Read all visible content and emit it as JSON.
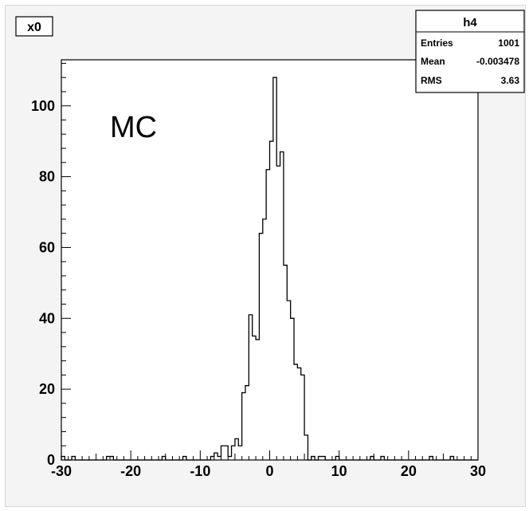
{
  "chart_data": {
    "type": "bar",
    "histogram_name": "x0",
    "annotation": "MC",
    "stats": {
      "name": "h4",
      "rows": [
        {
          "label": "Entries",
          "value": "1001"
        },
        {
          "label": "Mean",
          "value": "-0.003478"
        },
        {
          "label": "RMS",
          "value": "3.63"
        }
      ]
    },
    "xlim": [
      -30,
      30
    ],
    "ylim": [
      0,
      113
    ],
    "x_ticks": [
      -30,
      -20,
      -10,
      0,
      10,
      20,
      30
    ],
    "y_ticks": [
      0,
      20,
      40,
      60,
      80,
      100
    ],
    "bin_width": 0.5,
    "bins": [
      {
        "x": -30.0,
        "y": 1
      },
      {
        "x": -29.5,
        "y": 0
      },
      {
        "x": -29.0,
        "y": 0
      },
      {
        "x": -28.5,
        "y": 1
      },
      {
        "x": -28.0,
        "y": 0
      },
      {
        "x": -27.5,
        "y": 0
      },
      {
        "x": -27.0,
        "y": 0
      },
      {
        "x": -26.5,
        "y": 0
      },
      {
        "x": -26.0,
        "y": 0
      },
      {
        "x": -25.5,
        "y": 0
      },
      {
        "x": -25.0,
        "y": 0
      },
      {
        "x": -24.5,
        "y": 0
      },
      {
        "x": -24.0,
        "y": 0
      },
      {
        "x": -23.5,
        "y": 1
      },
      {
        "x": -23.0,
        "y": 1
      },
      {
        "x": -22.5,
        "y": 0
      },
      {
        "x": -22.0,
        "y": 0
      },
      {
        "x": -21.5,
        "y": 0
      },
      {
        "x": -21.0,
        "y": 0
      },
      {
        "x": -20.5,
        "y": 0
      },
      {
        "x": -20.0,
        "y": 0
      },
      {
        "x": -19.5,
        "y": 0
      },
      {
        "x": -19.0,
        "y": 0
      },
      {
        "x": -18.5,
        "y": 0
      },
      {
        "x": -18.0,
        "y": 0
      },
      {
        "x": -17.5,
        "y": 0
      },
      {
        "x": -17.0,
        "y": 0
      },
      {
        "x": -16.5,
        "y": 0
      },
      {
        "x": -16.0,
        "y": 0
      },
      {
        "x": -15.5,
        "y": 1
      },
      {
        "x": -15.0,
        "y": 0
      },
      {
        "x": -14.5,
        "y": 0
      },
      {
        "x": -14.0,
        "y": 0
      },
      {
        "x": -13.5,
        "y": 0
      },
      {
        "x": -13.0,
        "y": 0
      },
      {
        "x": -12.5,
        "y": 1
      },
      {
        "x": -12.0,
        "y": 0
      },
      {
        "x": -11.5,
        "y": 0
      },
      {
        "x": -11.0,
        "y": 0
      },
      {
        "x": -10.5,
        "y": 0
      },
      {
        "x": -10.0,
        "y": 0
      },
      {
        "x": -9.5,
        "y": 0
      },
      {
        "x": -9.0,
        "y": 0
      },
      {
        "x": -8.5,
        "y": 1
      },
      {
        "x": -8.0,
        "y": 2
      },
      {
        "x": -7.5,
        "y": 1
      },
      {
        "x": -7.0,
        "y": 4
      },
      {
        "x": -6.5,
        "y": 4
      },
      {
        "x": -6.0,
        "y": 1
      },
      {
        "x": -5.5,
        "y": 4
      },
      {
        "x": -5.0,
        "y": 6
      },
      {
        "x": -4.5,
        "y": 4
      },
      {
        "x": -4.0,
        "y": 19
      },
      {
        "x": -3.5,
        "y": 21
      },
      {
        "x": -3.0,
        "y": 41
      },
      {
        "x": -2.5,
        "y": 35
      },
      {
        "x": -2.0,
        "y": 34
      },
      {
        "x": -1.5,
        "y": 64
      },
      {
        "x": -1.0,
        "y": 68
      },
      {
        "x": -0.5,
        "y": 82
      },
      {
        "x": 0.0,
        "y": 90
      },
      {
        "x": 0.5,
        "y": 108
      },
      {
        "x": 1.0,
        "y": 83
      },
      {
        "x": 1.5,
        "y": 87
      },
      {
        "x": 2.0,
        "y": 55
      },
      {
        "x": 2.5,
        "y": 45
      },
      {
        "x": 3.0,
        "y": 40
      },
      {
        "x": 3.5,
        "y": 27
      },
      {
        "x": 4.0,
        "y": 26
      },
      {
        "x": 4.5,
        "y": 24
      },
      {
        "x": 5.0,
        "y": 7
      },
      {
        "x": 5.5,
        "y": 0
      },
      {
        "x": 6.0,
        "y": 1
      },
      {
        "x": 6.5,
        "y": 0
      },
      {
        "x": 7.0,
        "y": 1
      },
      {
        "x": 7.5,
        "y": 1
      },
      {
        "x": 8.0,
        "y": 0
      },
      {
        "x": 8.5,
        "y": 0
      },
      {
        "x": 9.0,
        "y": 0
      },
      {
        "x": 9.5,
        "y": 1
      },
      {
        "x": 10.0,
        "y": 0
      },
      {
        "x": 10.5,
        "y": 0
      },
      {
        "x": 11.0,
        "y": 0
      },
      {
        "x": 11.5,
        "y": 0
      },
      {
        "x": 12.0,
        "y": 0
      },
      {
        "x": 12.5,
        "y": 0
      },
      {
        "x": 13.0,
        "y": 0
      },
      {
        "x": 13.5,
        "y": 0
      },
      {
        "x": 14.0,
        "y": 0
      },
      {
        "x": 14.5,
        "y": 1
      },
      {
        "x": 15.0,
        "y": 0
      },
      {
        "x": 15.5,
        "y": 0
      },
      {
        "x": 16.0,
        "y": 1
      },
      {
        "x": 16.5,
        "y": 0
      },
      {
        "x": 17.0,
        "y": 0
      },
      {
        "x": 17.5,
        "y": 0
      },
      {
        "x": 18.0,
        "y": 0
      },
      {
        "x": 18.5,
        "y": 0
      },
      {
        "x": 19.0,
        "y": 0
      },
      {
        "x": 19.5,
        "y": 0
      },
      {
        "x": 20.0,
        "y": 0
      },
      {
        "x": 20.5,
        "y": 0
      },
      {
        "x": 21.0,
        "y": 0
      },
      {
        "x": 21.5,
        "y": 0
      },
      {
        "x": 22.0,
        "y": 0
      },
      {
        "x": 22.5,
        "y": 0
      },
      {
        "x": 23.0,
        "y": 1
      },
      {
        "x": 23.5,
        "y": 0
      },
      {
        "x": 24.0,
        "y": 0
      },
      {
        "x": 24.5,
        "y": 0
      },
      {
        "x": 25.0,
        "y": 0
      },
      {
        "x": 25.5,
        "y": 0
      },
      {
        "x": 26.0,
        "y": 1
      },
      {
        "x": 26.5,
        "y": 0
      },
      {
        "x": 27.0,
        "y": 0
      },
      {
        "x": 27.5,
        "y": 0
      },
      {
        "x": 28.0,
        "y": 0
      },
      {
        "x": 28.5,
        "y": 0
      },
      {
        "x": 29.0,
        "y": 0
      },
      {
        "x": 29.5,
        "y": 0
      }
    ],
    "grid": false,
    "legend": "top-right stats box"
  }
}
